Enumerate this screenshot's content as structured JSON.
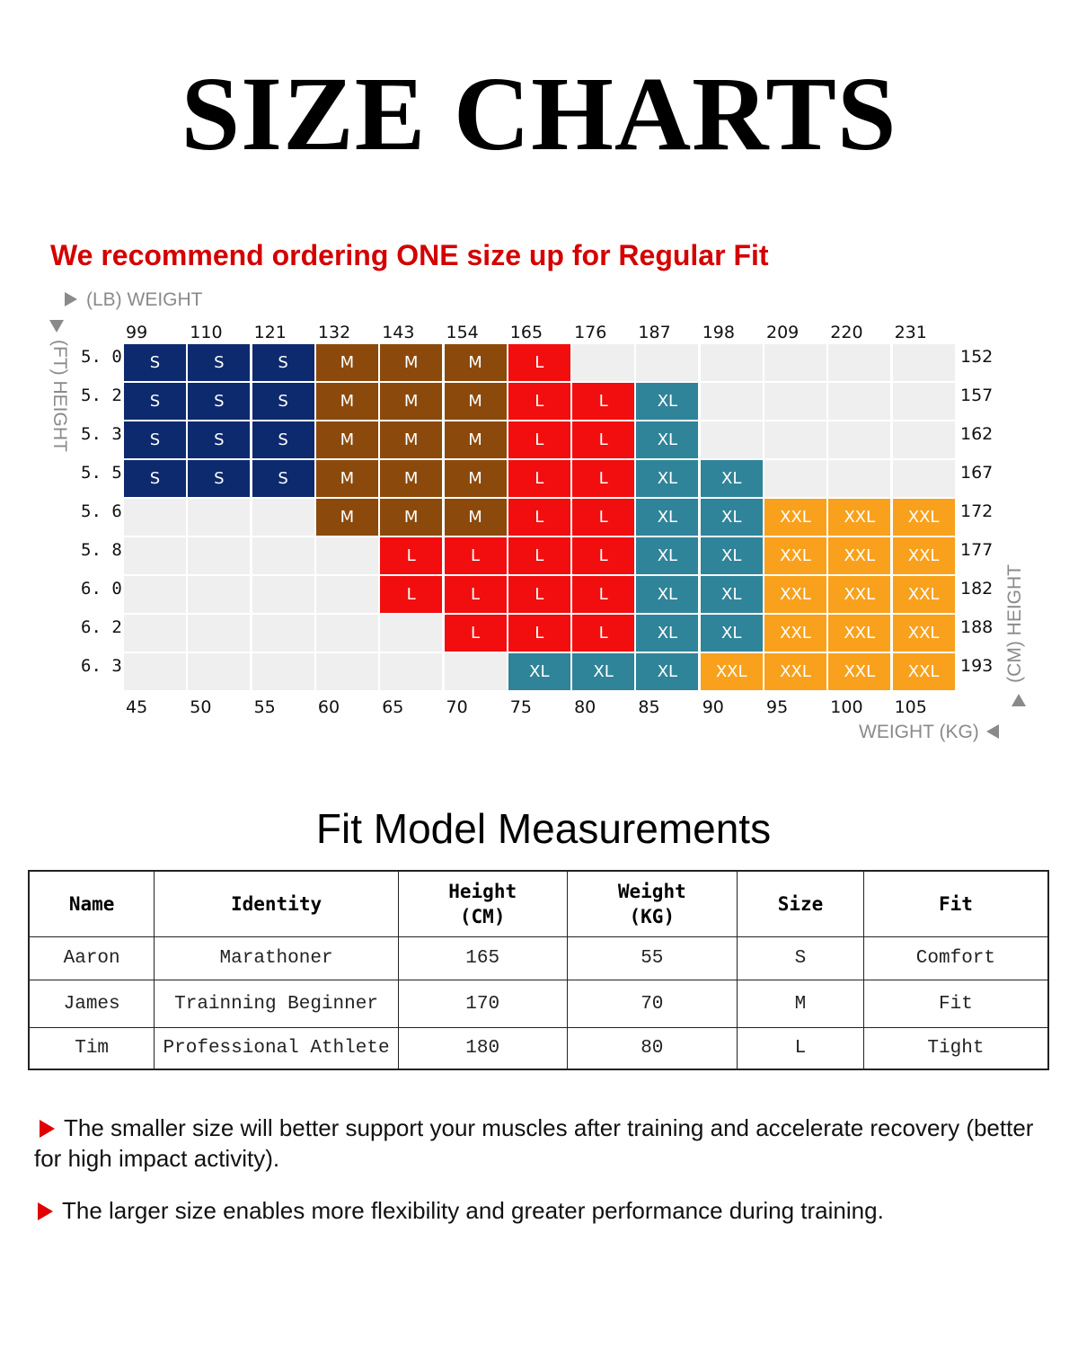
{
  "title": "SIZE CHARTS",
  "recommendation": "We recommend ordering ONE size up for Regular Fit",
  "size_chart": {
    "lb_axis_label": "(LB) WEIGHT",
    "ft_axis_label": "(FT) HEIGHT",
    "cm_axis_label": "(CM) HEIGHT",
    "kg_axis_label": "WEIGHT (KG)",
    "lb_ticks": [
      "99",
      "110",
      "121",
      "132",
      "143",
      "154",
      "165",
      "176",
      "187",
      "198",
      "209",
      "220",
      "231"
    ],
    "kg_ticks": [
      "45",
      "50",
      "55",
      "60",
      "65",
      "70",
      "75",
      "80",
      "85",
      "90",
      "95",
      "100",
      "105"
    ],
    "ft_ticks": [
      "5. 0",
      "5. 2",
      "5. 3",
      "5. 5",
      "5. 6",
      "5. 8",
      "6. 0",
      "6. 2",
      "6. 3"
    ],
    "cm_ticks": [
      "152",
      "157",
      "162",
      "167",
      "172",
      "177",
      "182",
      "188",
      "193"
    ],
    "size_colors": {
      "S": "#0d2a6e",
      "M": "#8b4a0c",
      "L": "#f20e0e",
      "XL": "#2f8499",
      "XXL": "#f9a11c",
      "empty": "#efefef"
    },
    "rows": [
      [
        "S",
        "S",
        "S",
        "M",
        "M",
        "M",
        "L",
        "",
        "",
        "",
        "",
        "",
        ""
      ],
      [
        "S",
        "S",
        "S",
        "M",
        "M",
        "M",
        "L",
        "L",
        "XL",
        "",
        "",
        "",
        ""
      ],
      [
        "S",
        "S",
        "S",
        "M",
        "M",
        "M",
        "L",
        "L",
        "XL",
        "",
        "",
        "",
        ""
      ],
      [
        "S",
        "S",
        "S",
        "M",
        "M",
        "M",
        "L",
        "L",
        "XL",
        "XL",
        "",
        "",
        ""
      ],
      [
        "",
        "",
        "",
        "M",
        "M",
        "M",
        "L",
        "L",
        "XL",
        "XL",
        "XXL",
        "XXL",
        "XXL"
      ],
      [
        "",
        "",
        "",
        "",
        "L",
        "L",
        "L",
        "L",
        "XL",
        "XL",
        "XXL",
        "XXL",
        "XXL"
      ],
      [
        "",
        "",
        "",
        "",
        "L",
        "L",
        "L",
        "L",
        "XL",
        "XL",
        "XXL",
        "XXL",
        "XXL"
      ],
      [
        "",
        "",
        "",
        "",
        "",
        "L",
        "L",
        "L",
        "XL",
        "XL",
        "XXL",
        "XXL",
        "XXL"
      ],
      [
        "",
        "",
        "",
        "",
        "",
        "",
        "XL",
        "XL",
        "XL",
        "XXL",
        "XXL",
        "XXL",
        "XXL"
      ]
    ]
  },
  "fit_model": {
    "title": "Fit Model Measurements",
    "headers": {
      "name": "Name",
      "identity": "Identity",
      "height_1": "Height",
      "height_2": "(CM)",
      "weight_1": "Weight",
      "weight_2": "(KG)",
      "size": "Size",
      "fit": "Fit"
    },
    "rows": [
      {
        "name": "Aaron",
        "identity": "Marathoner",
        "height": "165",
        "weight": "55",
        "size": "S",
        "fit": "Comfort"
      },
      {
        "name": "James",
        "identity": "Trainning Beginner",
        "height": "170",
        "weight": "70",
        "size": "M",
        "fit": "Fit"
      },
      {
        "name": "Tim",
        "identity": "Professional Athlete",
        "height": "180",
        "weight": "80",
        "size": "L",
        "fit": "Tight"
      }
    ]
  },
  "notes": [
    "The smaller size will better support your muscles after training and accelerate recovery (better for high impact activity).",
    "The larger size enables more flexibility and greater performance during training."
  ]
}
